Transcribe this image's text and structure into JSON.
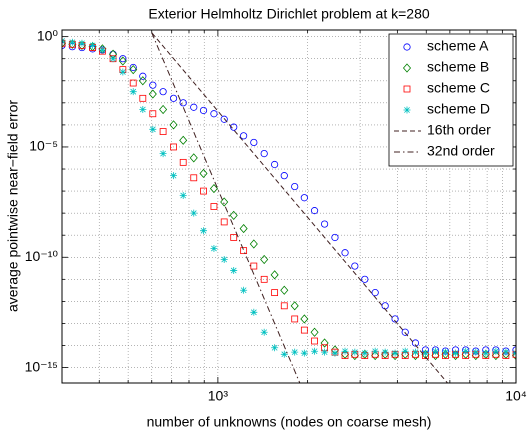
{
  "chart_data": {
    "type": "scatter",
    "title": "Exterior Helmholtz Dirichlet problem at k=280",
    "xlabel": "number of unknowns (nodes on coarse mesh)",
    "ylabel": "average pointwise near−field error",
    "xscale": "log",
    "yscale": "log",
    "grid": true,
    "legend": "upper right",
    "xlim": [
      300,
      10000
    ],
    "ylim": [
      2e-16,
      2
    ],
    "xticks": [
      {
        "value": 1000,
        "label": "10³"
      },
      {
        "value": 10000,
        "label": "10⁴"
      }
    ],
    "xminorticks": [
      400,
      500,
      600,
      700,
      800,
      900,
      2000,
      3000,
      4000,
      5000,
      6000,
      7000,
      8000,
      9000
    ],
    "yticks": [
      {
        "value": 1,
        "label": "10⁰"
      },
      {
        "value": 1e-05,
        "label": "10⁻⁵"
      },
      {
        "value": 1e-10,
        "label": "10⁻¹⁰"
      },
      {
        "value": 1e-15,
        "label": "10⁻¹⁵"
      }
    ],
    "yminorticks": [
      0.1,
      0.01,
      0.001,
      0.0001,
      1e-06,
      1e-07,
      1e-08,
      1e-09,
      1e-11,
      1e-12,
      1e-13,
      1e-14
    ],
    "x": [
      300,
      325,
      350,
      380,
      410,
      445,
      480,
      520,
      560,
      605,
      655,
      710,
      765,
      830,
      895,
      970,
      1050,
      1130,
      1220,
      1320,
      1430,
      1550,
      1670,
      1810,
      1950,
      2110,
      2280,
      2470,
      2670,
      2880,
      3110,
      3370,
      3640,
      3930,
      4250,
      4600,
      4970,
      5370,
      5800,
      6270,
      6780,
      7330,
      7920,
      8560,
      9250,
      10000
    ],
    "series": [
      {
        "name": "scheme A",
        "color": "#0000ff",
        "marker": "circle",
        "values": [
          0.4,
          0.35,
          0.32,
          0.28,
          0.25,
          0.16,
          0.1,
          0.04,
          0.016,
          0.0063,
          0.0032,
          0.0016,
          0.001,
          0.00063,
          0.00045,
          0.00032,
          0.00018,
          7.9e-05,
          3.2e-05,
          1.6e-05,
          5e-06,
          1.6e-06,
          5e-07,
          1.6e-07,
          5e-08,
          1.3e-08,
          3.2e-09,
          7.9e-10,
          1.6e-10,
          4e-11,
          1e-11,
          2.5e-12,
          6.3e-13,
          1.6e-13,
          4e-14,
          1.3e-14,
          6.3e-15,
          6.3e-15,
          5.6e-15,
          6.3e-15,
          6.3e-15,
          5.6e-15,
          6.3e-15,
          6.3e-15,
          5.6e-15,
          6.3e-15
        ]
      },
      {
        "name": "scheme B",
        "color": "#008000",
        "marker": "diamond",
        "values": [
          0.5,
          0.45,
          0.4,
          0.35,
          0.28,
          0.16,
          0.079,
          0.032,
          0.01,
          0.0025,
          0.0005,
          0.0001,
          2e-05,
          3.2e-06,
          6.3e-07,
          1.3e-07,
          3.2e-08,
          7.9e-09,
          2e-09,
          4e-10,
          7.9e-11,
          1.6e-11,
          3.2e-12,
          6.3e-13,
          1.6e-13,
          4e-14,
          1.3e-14,
          6.3e-15,
          4e-15,
          3.5e-15,
          4e-15,
          3.5e-15,
          4e-15,
          3.5e-15,
          4e-15,
          3.5e-15,
          4e-15,
          3.5e-15,
          4e-15,
          3.5e-15,
          4e-15,
          3.5e-15,
          4e-15,
          3.5e-15,
          4e-15,
          3.5e-15
        ]
      },
      {
        "name": "scheme C",
        "color": "#ff0000",
        "marker": "square",
        "values": [
          0.5,
          0.45,
          0.4,
          0.32,
          0.22,
          0.1,
          0.032,
          0.0079,
          0.0016,
          0.00032,
          5e-05,
          1e-05,
          2e-06,
          4e-07,
          1e-07,
          2e-08,
          4e-09,
          7.9e-10,
          2e-10,
          4e-11,
          1e-11,
          2.5e-12,
          6.3e-13,
          1.6e-13,
          5e-14,
          1.6e-14,
          7.9e-15,
          5e-15,
          3.5e-15,
          4e-15,
          3.5e-15,
          4e-15,
          3.5e-15,
          4e-15,
          3.5e-15,
          4e-15,
          3.5e-15,
          4e-15,
          3.5e-15,
          4e-15,
          3.5e-15,
          4e-15,
          3.5e-15,
          4e-15,
          3.5e-15,
          4e-15
        ]
      },
      {
        "name": "scheme D",
        "color": "#00c0c0",
        "marker": "star",
        "values": [
          0.63,
          0.56,
          0.5,
          0.4,
          0.25,
          0.1,
          0.025,
          0.0032,
          0.0005,
          6.3e-05,
          5e-06,
          5e-07,
          6.3e-08,
          1e-08,
          1.6e-09,
          2.5e-10,
          7.9e-11,
          2.5e-11,
          3.2e-12,
          3.2e-13,
          4e-14,
          7.9e-15,
          4e-15,
          5e-15,
          4.5e-15,
          5.5e-15,
          5e-15,
          4.5e-15,
          5.5e-15,
          5e-15,
          4.5e-15,
          5.5e-15,
          5e-15,
          4.5e-15,
          5.5e-15,
          5e-15,
          4.5e-15,
          5.5e-15,
          5e-15,
          4.5e-15,
          5.5e-15,
          5e-15,
          4.5e-15,
          5.5e-15,
          5e-15,
          4.5e-15
        ]
      },
      {
        "name": "16th order",
        "color": "#402020",
        "linestyle": "dashed",
        "x": [
          600,
          6000
        ],
        "values": [
          1.5,
          1.5e-16
        ]
      },
      {
        "name": "32nd order",
        "color": "#402020",
        "linestyle": "dashdot",
        "x": [
          600,
          1900
        ],
        "values": [
          1.5,
          1.5e-16
        ]
      }
    ]
  }
}
